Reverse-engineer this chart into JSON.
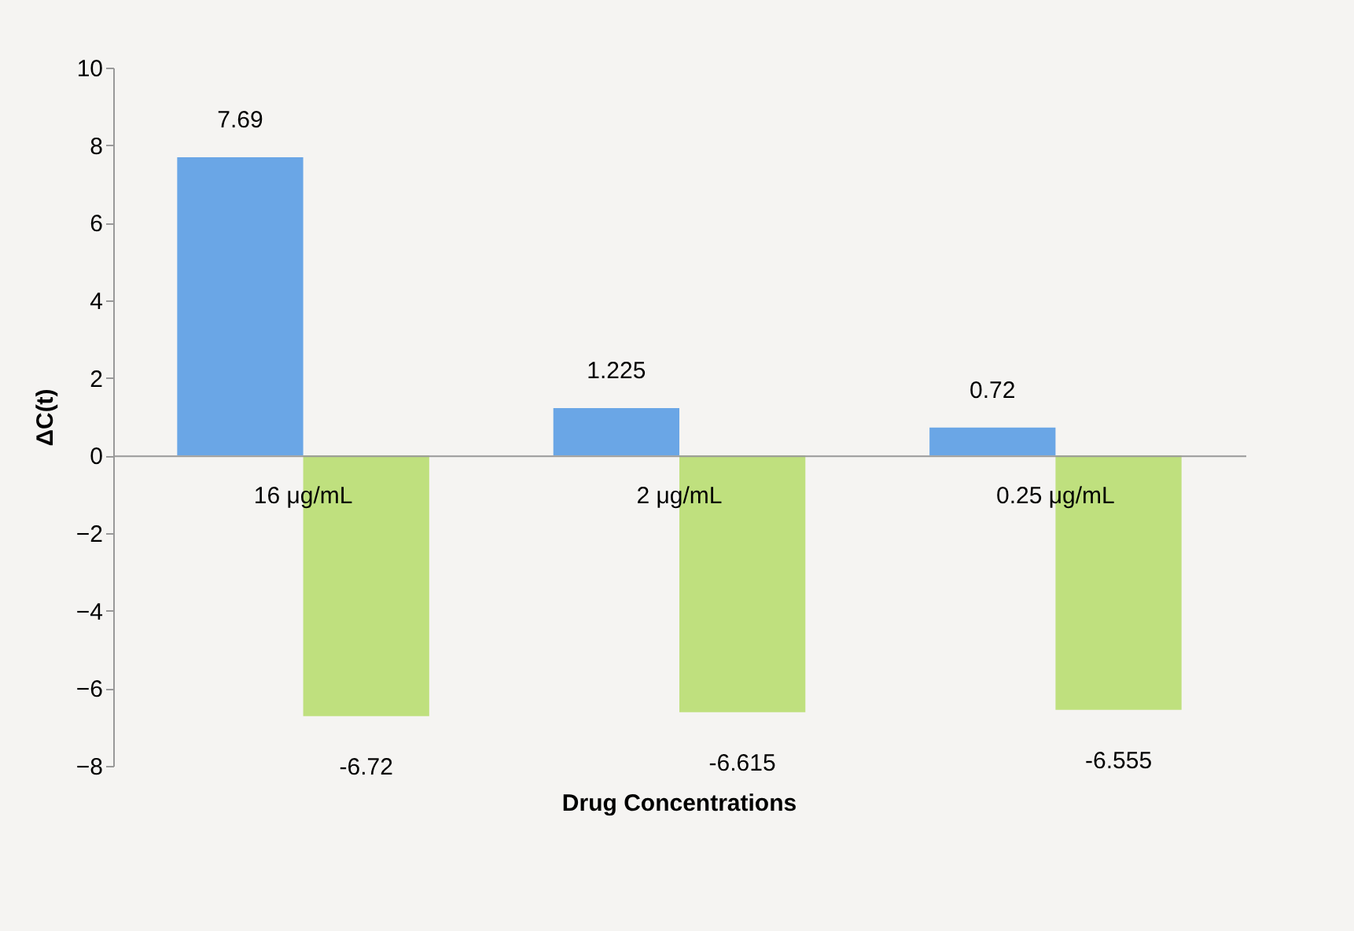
{
  "chart_data": {
    "type": "bar",
    "xlabel": "Drug Concentrations",
    "ylabel": "ΔC(t)",
    "categories": [
      "16 μg/mL",
      "2 μg/mL",
      "0.25 μg/mL"
    ],
    "series": [
      {
        "color": "#6aa6e6",
        "values": [
          7.69,
          1.225,
          0.72
        ]
      },
      {
        "color": "#bfe07e",
        "values": [
          -6.72,
          -6.615,
          -6.555
        ]
      }
    ],
    "ylim": [
      -8,
      10
    ],
    "yticks": [
      -8,
      -6,
      -4,
      -2,
      0,
      2,
      4,
      6,
      8,
      10
    ],
    "grid": false,
    "data_labels": true
  }
}
